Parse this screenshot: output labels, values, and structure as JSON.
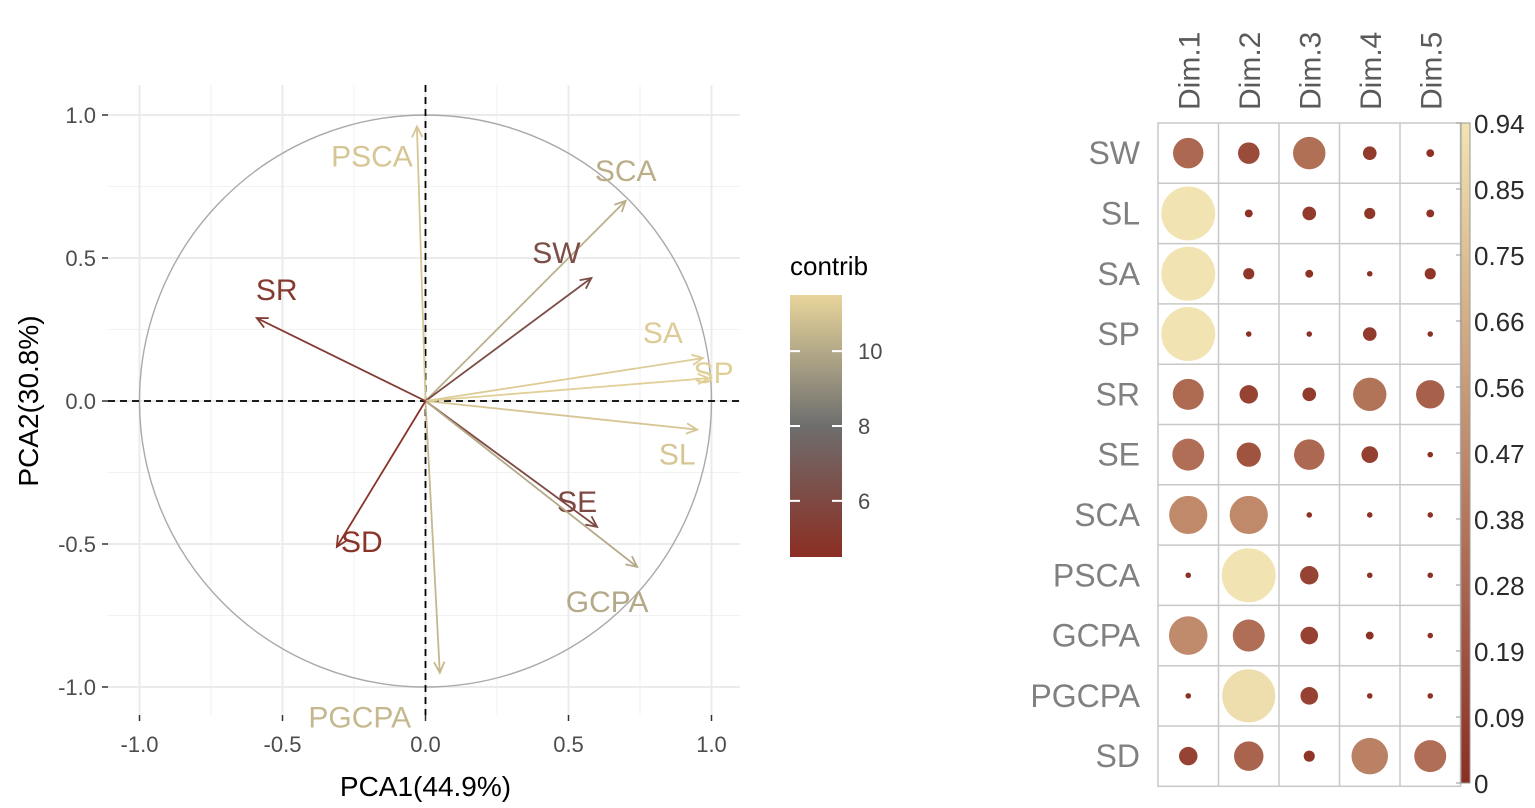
{
  "chart_data": [
    {
      "type": "scatter",
      "subtype": "pca-variable-correlation-circle",
      "title": "",
      "xlabel": "PCA1(44.9%)",
      "ylabel": "PCA2(30.8%)",
      "xlim": [
        -1.0,
        1.0
      ],
      "ylim": [
        -1.0,
        1.0
      ],
      "xticks": [
        "-1.0",
        "-0.5",
        "0.0",
        "0.5",
        "1.0"
      ],
      "yticks": [
        "1.0",
        "0.5",
        "0.0",
        "-0.5",
        "-1.0"
      ],
      "grid": true,
      "legend": {
        "title": "contrib",
        "placement": "right",
        "ticks": [
          "10",
          "8",
          "6"
        ],
        "color_low": "#8B2E22",
        "color_mid": "#6E6E6E",
        "color_high": "#E8D59B"
      },
      "vectors": [
        {
          "name": "PSCA",
          "x": -0.03,
          "y": 0.96,
          "contrib": 11.0
        },
        {
          "name": "SCA",
          "x": 0.7,
          "y": 0.7,
          "contrib": 10.2
        },
        {
          "name": "SW",
          "x": 0.58,
          "y": 0.43,
          "contrib": 6.2
        },
        {
          "name": "SA",
          "x": 0.97,
          "y": 0.15,
          "contrib": 11.2
        },
        {
          "name": "SP",
          "x": 0.99,
          "y": 0.08,
          "contrib": 11.3
        },
        {
          "name": "SL",
          "x": 0.95,
          "y": -0.1,
          "contrib": 11.0
        },
        {
          "name": "SE",
          "x": 0.6,
          "y": -0.44,
          "contrib": 6.0
        },
        {
          "name": "GCPA",
          "x": 0.74,
          "y": -0.58,
          "contrib": 10.0
        },
        {
          "name": "PGCPA",
          "x": 0.05,
          "y": -0.95,
          "contrib": 10.5
        },
        {
          "name": "SD",
          "x": -0.31,
          "y": -0.51,
          "contrib": 4.8
        },
        {
          "name": "SR",
          "x": -0.59,
          "y": 0.29,
          "contrib": 5.2
        }
      ]
    },
    {
      "type": "heatmap",
      "subtype": "correlation-circle-plot",
      "rows": [
        "SW",
        "SL",
        "SA",
        "SP",
        "SR",
        "SE",
        "SCA",
        "PSCA",
        "GCPA",
        "PGCPA",
        "SD"
      ],
      "columns": [
        "Dim.1",
        "Dim.2",
        "Dim.3",
        "Dim.4",
        "Dim.5"
      ],
      "values": [
        [
          0.3,
          0.15,
          0.34,
          0.06,
          0.02
        ],
        [
          0.97,
          0.02,
          0.06,
          0.04,
          0.02
        ],
        [
          0.95,
          0.04,
          0.02,
          0.01,
          0.04
        ],
        [
          0.94,
          0.01,
          0.01,
          0.06,
          0.01
        ],
        [
          0.31,
          0.11,
          0.06,
          0.36,
          0.26
        ],
        [
          0.33,
          0.19,
          0.3,
          0.09,
          0.01
        ],
        [
          0.47,
          0.47,
          0.01,
          0.01,
          0.01
        ],
        [
          0.01,
          0.94,
          0.11,
          0.01,
          0.01
        ],
        [
          0.48,
          0.33,
          0.1,
          0.02,
          0.01
        ],
        [
          0.01,
          0.91,
          0.1,
          0.01,
          0.01
        ],
        [
          0.11,
          0.28,
          0.04,
          0.43,
          0.33
        ]
      ],
      "colorbar": {
        "ticks": [
          "0.94",
          "0.85",
          "0.75",
          "0.66",
          "0.56",
          "0.47",
          "0.38",
          "0.28",
          "0.19",
          "0.09",
          "0"
        ],
        "min": 0,
        "max": 0.94,
        "color_low": "#8B2E22",
        "color_high": "#F2E4B2"
      }
    }
  ]
}
